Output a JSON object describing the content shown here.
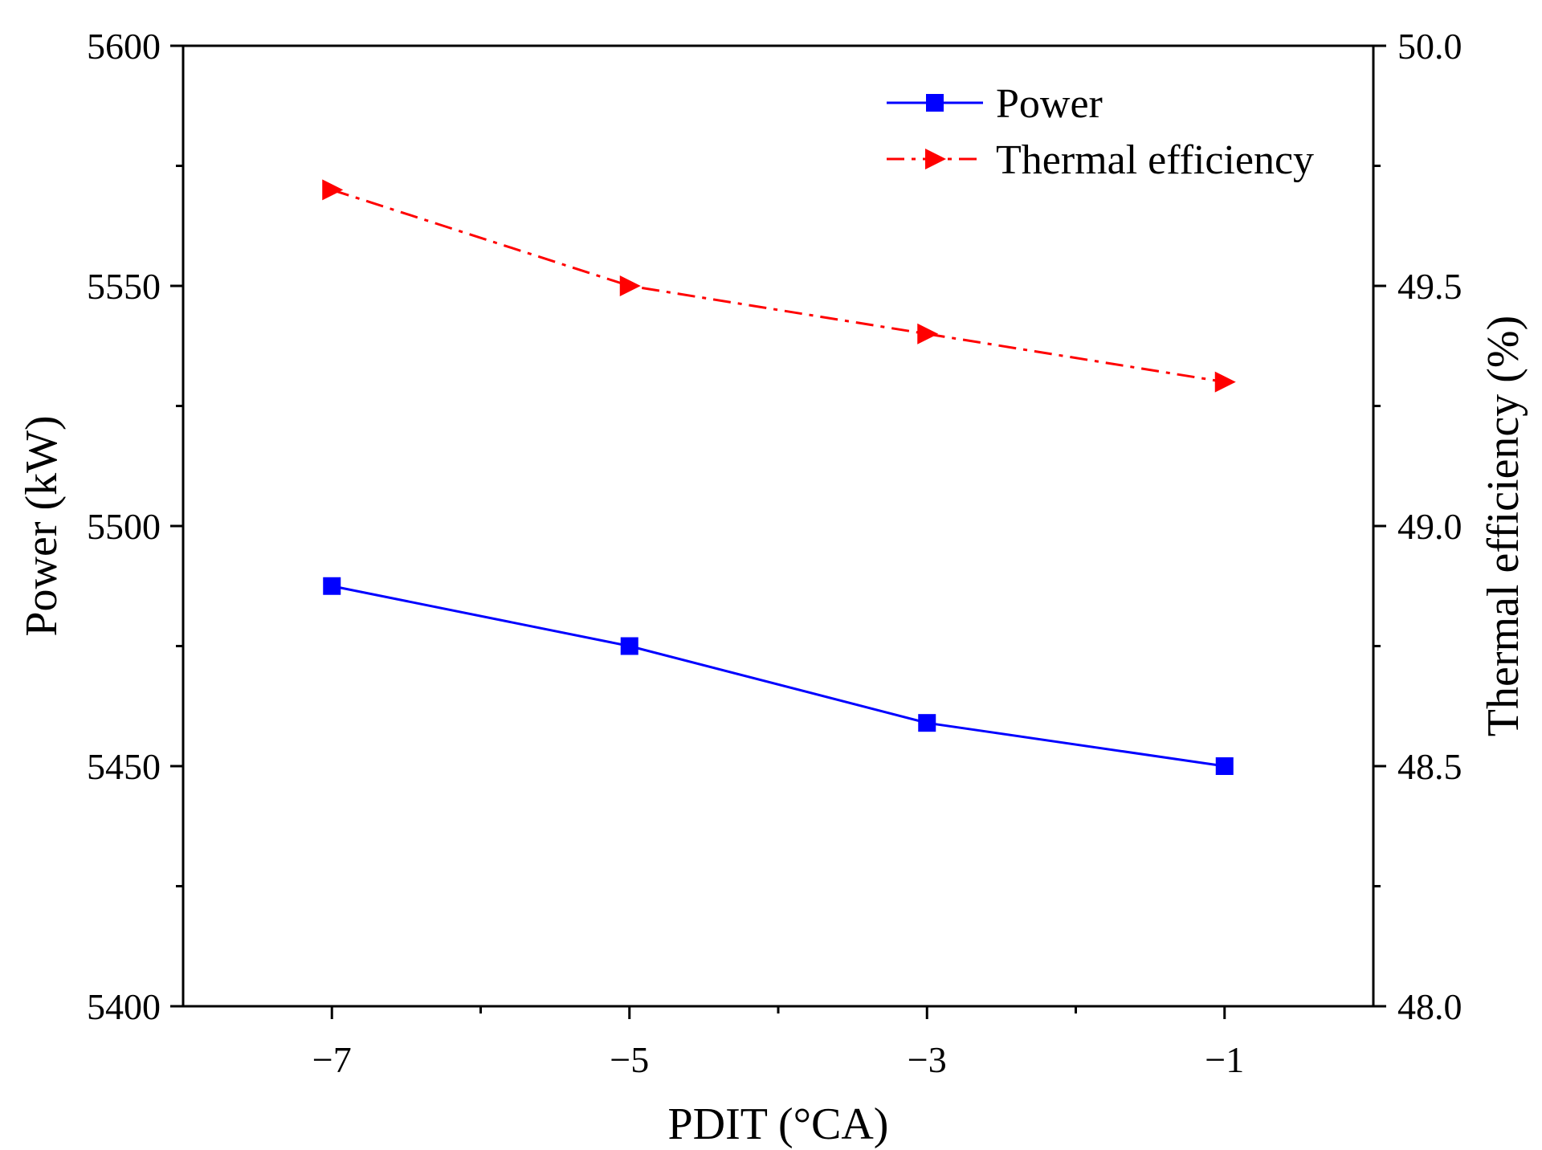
{
  "chart_data": {
    "type": "line",
    "xlabel": "PDIT (°CA)",
    "ylabel_left": "Power (kW)",
    "ylabel_right": "Thermal efficiency (%)",
    "x": [
      -7,
      -5,
      -3,
      -1
    ],
    "x_tick_labels": [
      "−7",
      "−5",
      "−3",
      "−1"
    ],
    "xlim": [
      -8,
      0
    ],
    "y_left_lim": [
      5400,
      5600
    ],
    "y_left_tick_labels": [
      "5400",
      "5450",
      "5500",
      "5550",
      "5600"
    ],
    "y_right_lim": [
      48.0,
      50.0
    ],
    "y_right_tick_labels": [
      "48.0",
      "48.5",
      "49.0",
      "49.5",
      "50.0"
    ],
    "grid": false,
    "legend_position": "top-right",
    "series": [
      {
        "name": "Power",
        "axis": "left",
        "values": [
          5487.5,
          5475,
          5459,
          5450
        ],
        "color": "#0000ff",
        "marker": "square",
        "line_style": "solid"
      },
      {
        "name": "Thermal efficiency",
        "axis": "right",
        "values": [
          49.7,
          49.5,
          49.4,
          49.3
        ],
        "color": "#ff0000",
        "marker": "triangle-right",
        "line_style": "dash-dot"
      }
    ]
  }
}
